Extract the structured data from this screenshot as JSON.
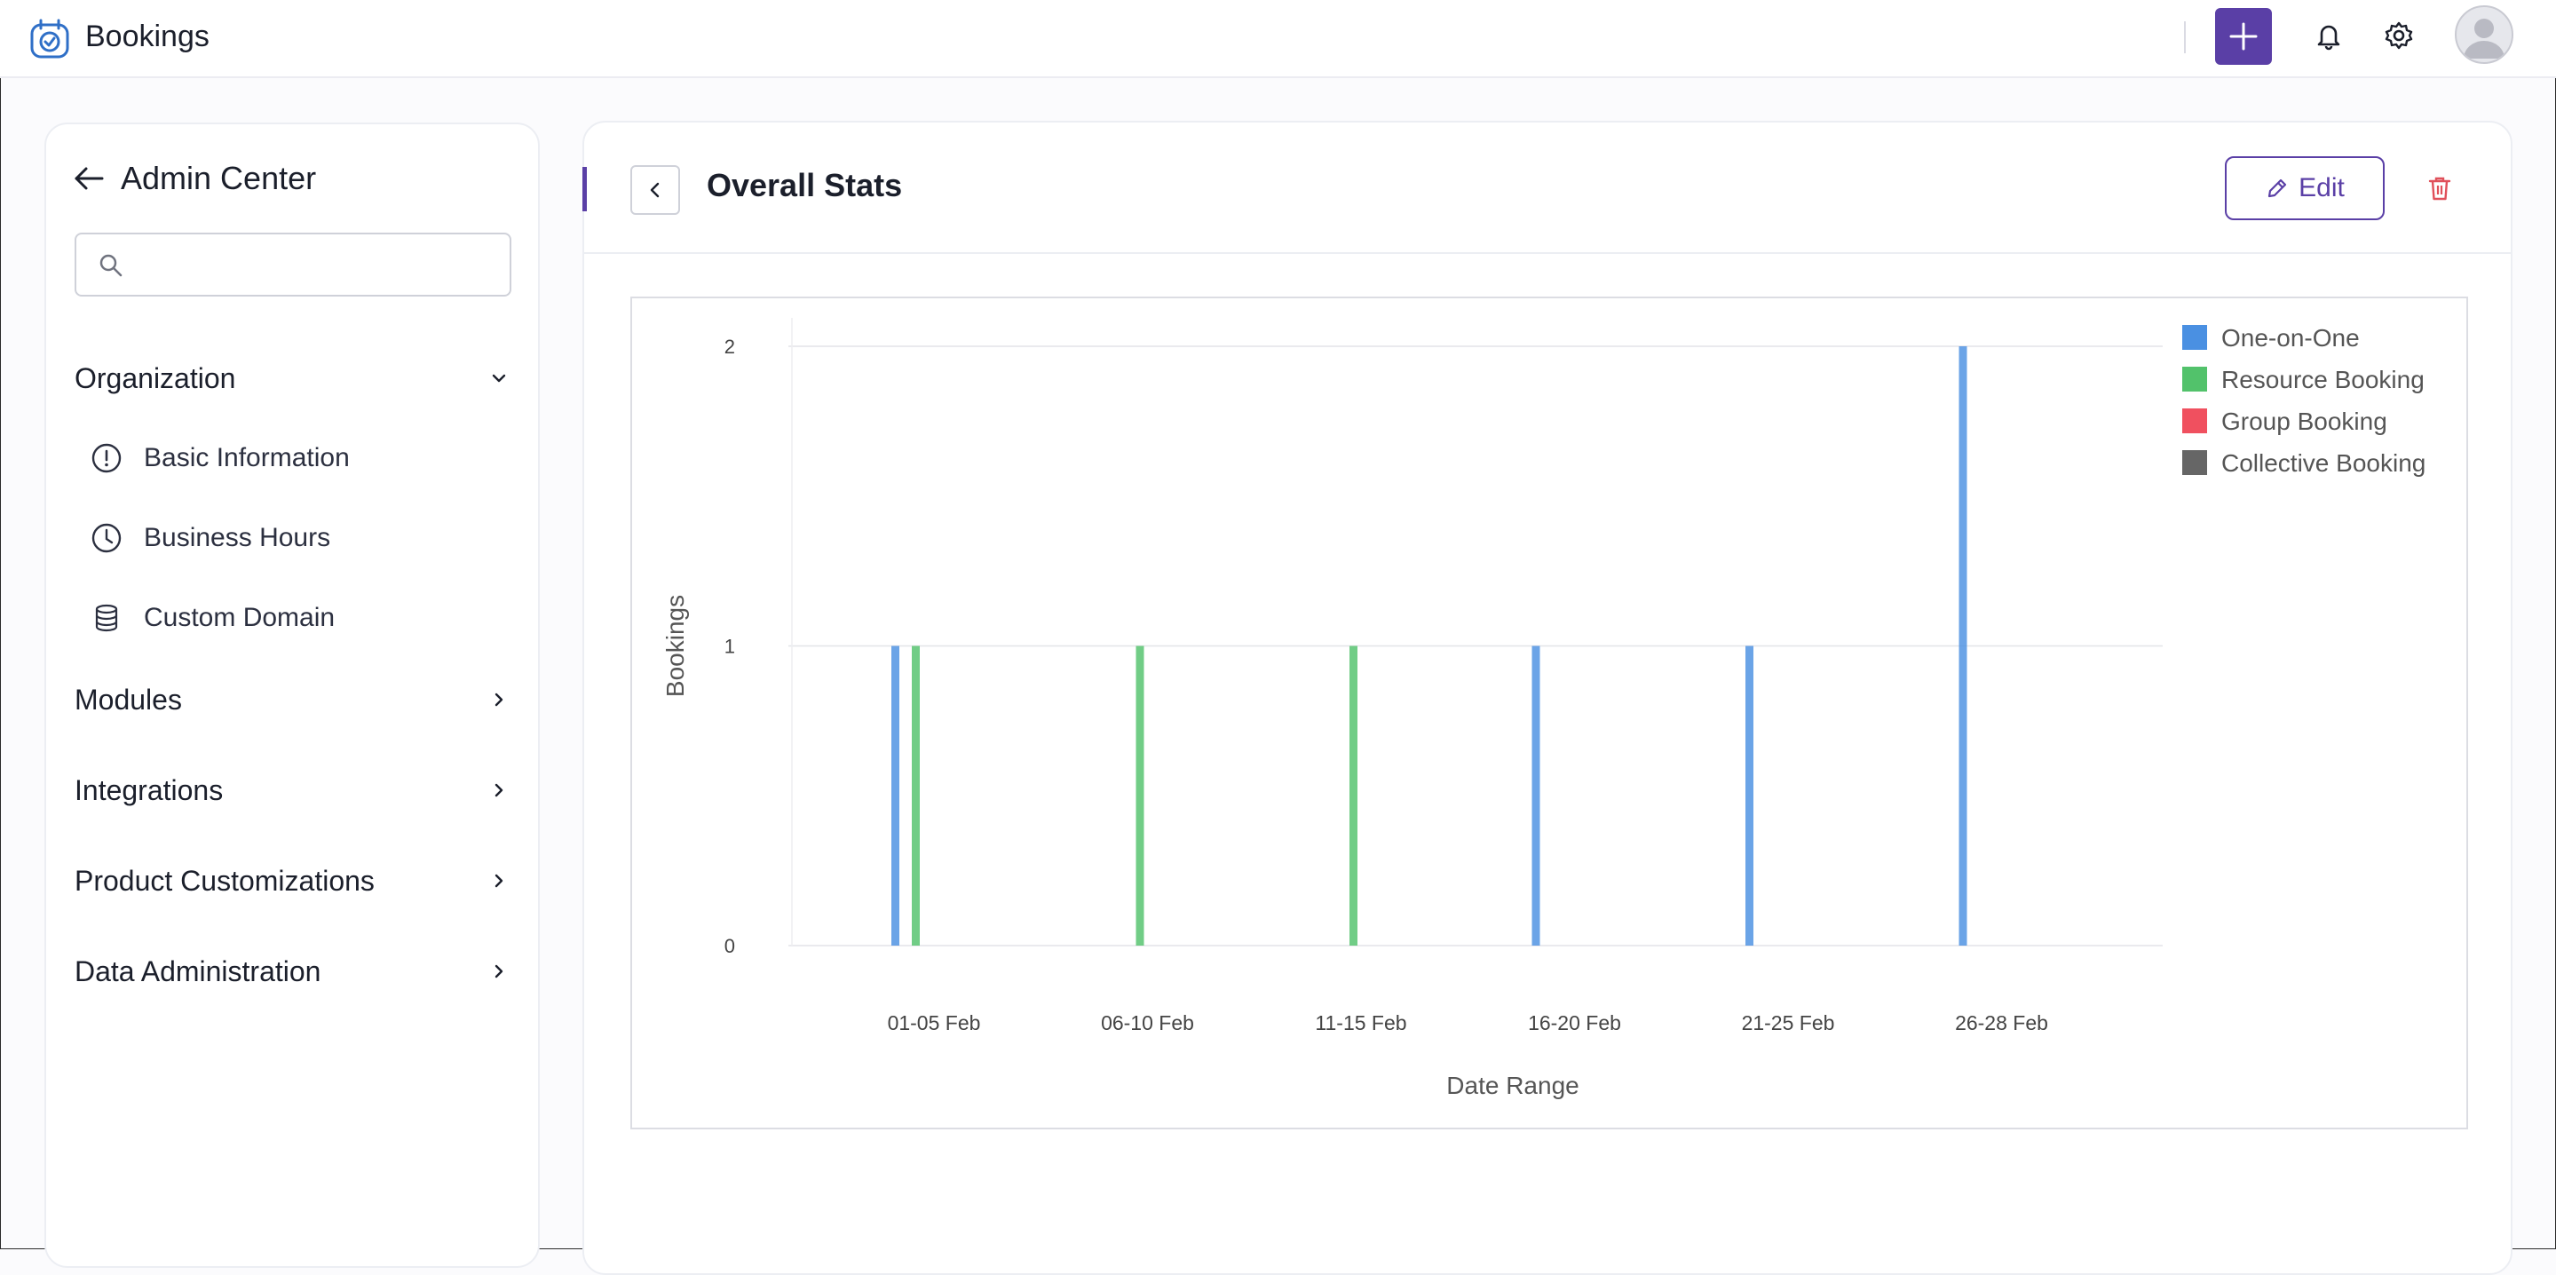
{
  "app": {
    "name": "Bookings"
  },
  "topbar": {
    "add_icon": "plus-icon",
    "notification_icon": "bell-icon",
    "settings_icon": "gear-icon",
    "avatar_icon": "user-avatar-icon",
    "accent_color": "#5a3fa6"
  },
  "sidebar": {
    "back_label": "Admin Center",
    "search": {
      "placeholder": "",
      "value": ""
    },
    "sections": [
      {
        "label": "Organization",
        "expanded": true,
        "items": [
          {
            "label": "Basic Information",
            "icon": "info-circle-icon"
          },
          {
            "label": "Business Hours",
            "icon": "clock-icon"
          },
          {
            "label": "Custom Domain",
            "icon": "database-icon"
          }
        ]
      },
      {
        "label": "Modules",
        "expanded": false
      },
      {
        "label": "Integrations",
        "expanded": false
      },
      {
        "label": "Product Customizations",
        "expanded": false
      },
      {
        "label": "Data Administration",
        "expanded": false
      }
    ]
  },
  "main": {
    "title": "Overall Stats",
    "edit_label": "Edit",
    "delete_icon": "trash-icon",
    "back_icon": "chevron-left-icon"
  },
  "chart_data": {
    "type": "bar",
    "title": "",
    "xlabel": "Date Range",
    "ylabel": "Bookings",
    "ylim": [
      0,
      2
    ],
    "yticks": [
      0,
      1,
      2
    ],
    "grid": true,
    "legend_position": "top-right",
    "categories": [
      "01-05 Feb",
      "06-10 Feb",
      "11-15 Feb",
      "16-20 Feb",
      "21-25 Feb",
      "26-28 Feb"
    ],
    "series": [
      {
        "name": "One-on-One",
        "color": "#4a90e2",
        "values": [
          1,
          0,
          0,
          1,
          1,
          2
        ]
      },
      {
        "name": "Resource Booking",
        "color": "#52c26b",
        "values": [
          1,
          1,
          1,
          0,
          0,
          0
        ]
      },
      {
        "name": "Group Booking",
        "color": "#f0505f",
        "values": [
          0,
          0,
          0,
          0,
          0,
          0
        ]
      },
      {
        "name": "Collective Booking",
        "color": "#666666",
        "values": [
          0,
          0,
          0,
          0,
          0,
          0
        ]
      }
    ]
  }
}
